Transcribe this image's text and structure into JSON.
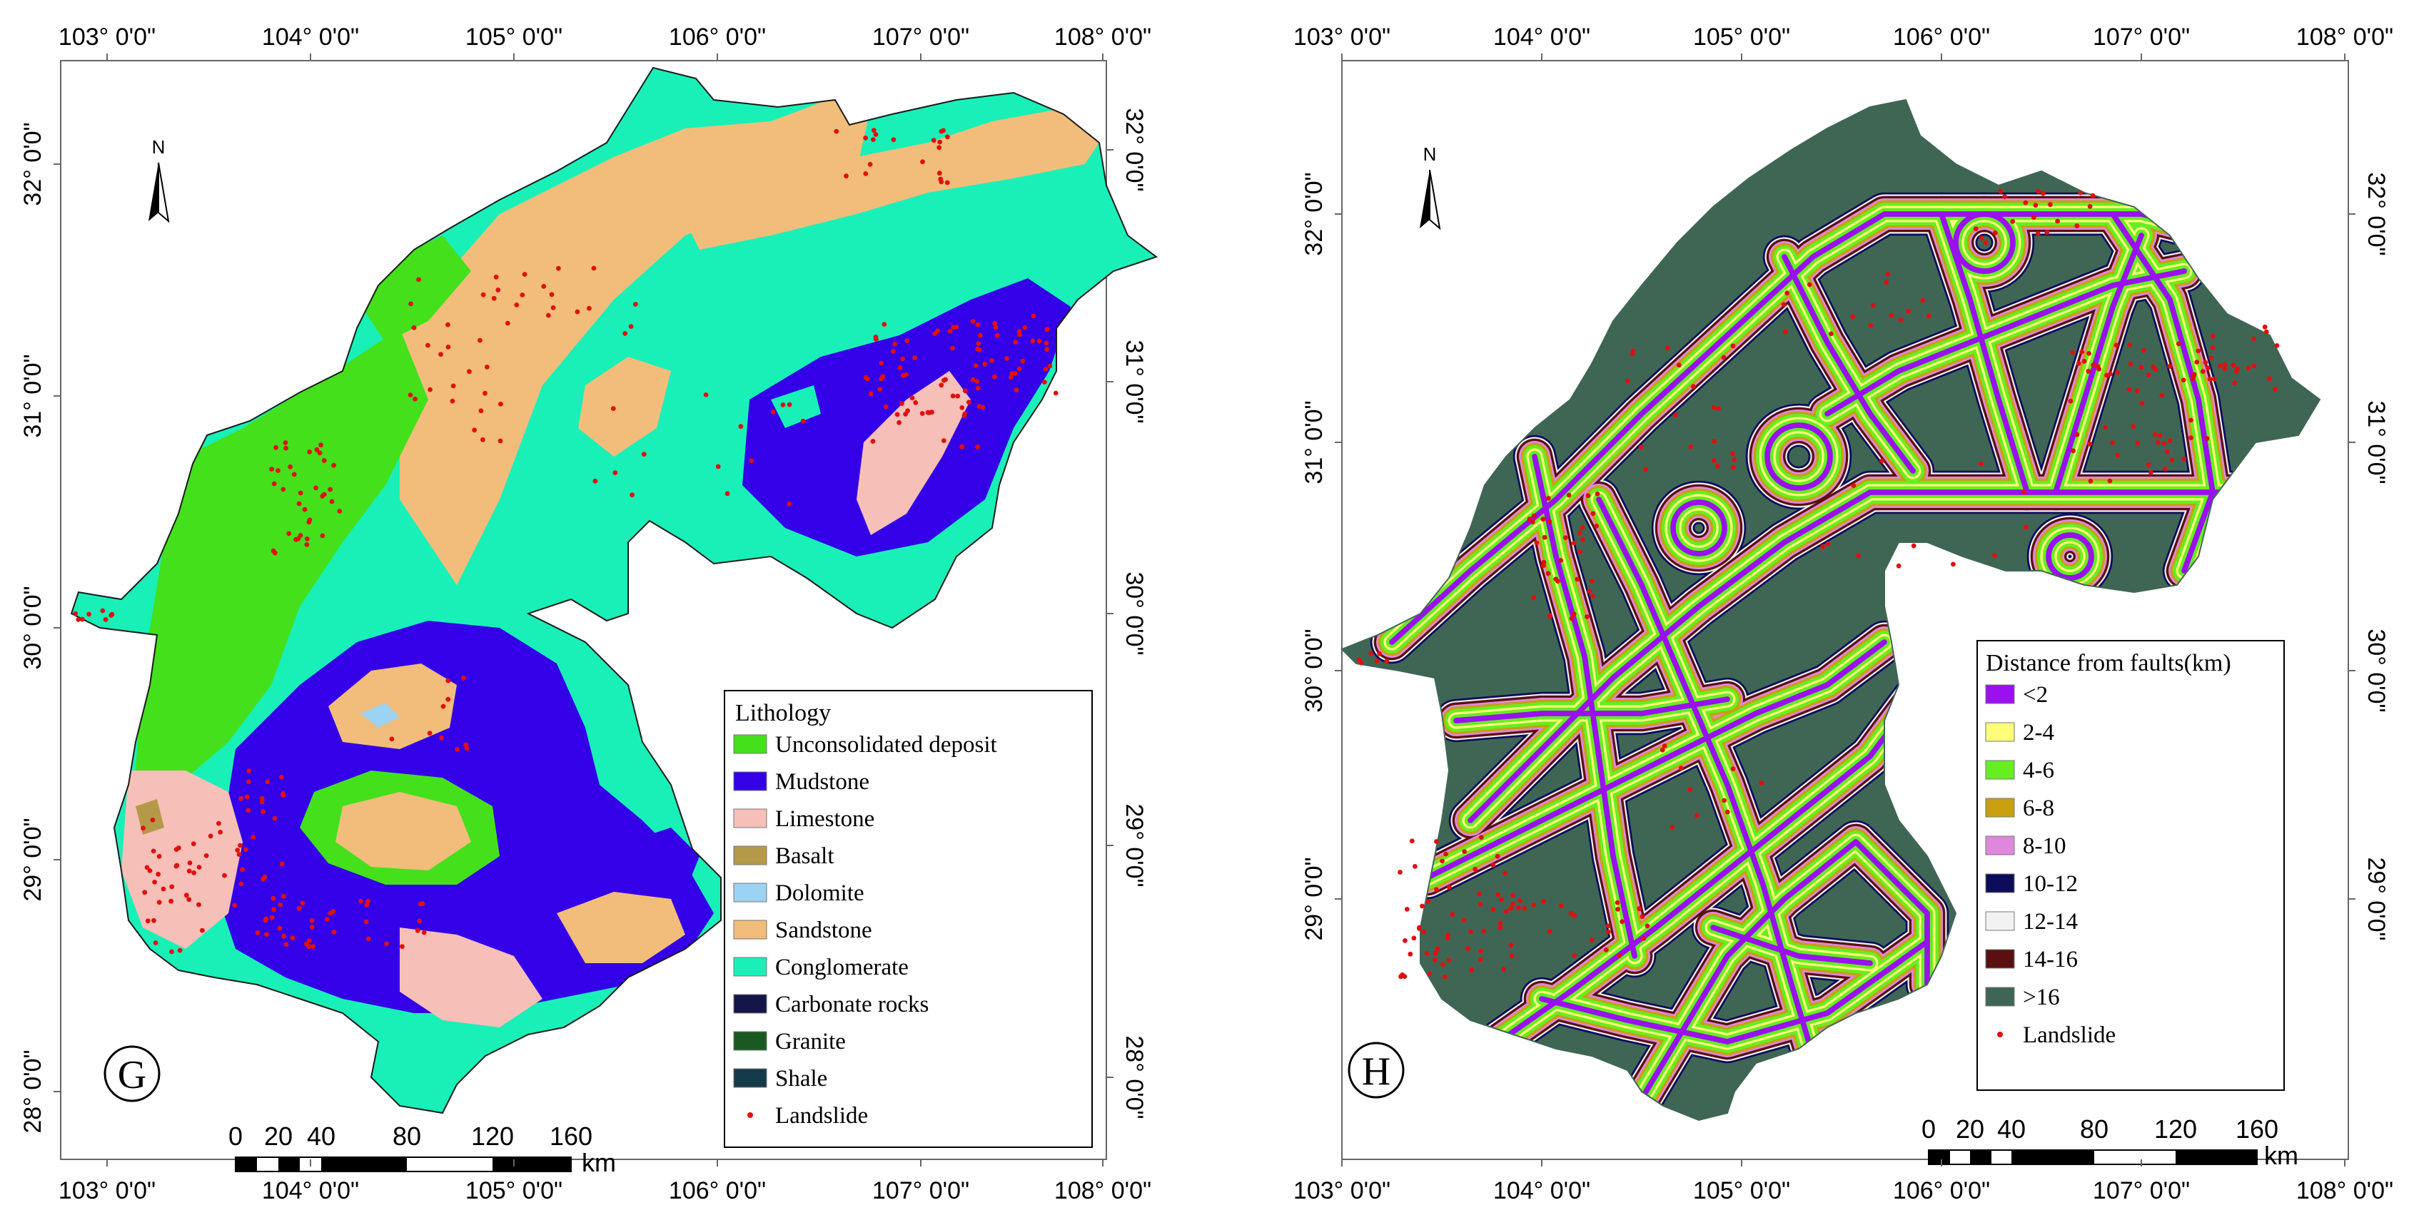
{
  "panels": [
    {
      "id": "G",
      "letter": "G",
      "north_label": "N",
      "top_ticks": [
        "103°  0'0\"",
        "104°  0'0\"",
        "105°  0'0\"",
        "106°  0'0\"",
        "107°  0'0\"",
        "108°  0'0\""
      ],
      "bottom_ticks": [
        "103°  0'0\"",
        "104°  0'0\"",
        "105°  0'0\"",
        "106°  0'0\"",
        "107°  0'0\"",
        "108°  0'0\""
      ],
      "left_ticks": [
        "32°  0'0\"",
        "31°  0'0\"",
        "30°  0'0\"",
        "29°  0'0\"",
        "28°  0'0\""
      ],
      "right_ticks": [
        "32°  0'0\"",
        "31°  0'0\"",
        "30°  0'0\"",
        "29°  0'0\"",
        "28°  0'0\""
      ],
      "legend": {
        "title": "Lithology",
        "items": [
          {
            "label": "Unconsolidated deposit",
            "color": "#44e01c"
          },
          {
            "label": "Mudstone",
            "color": "#3300e8"
          },
          {
            "label": "Limestone",
            "color": "#f6bfb8"
          },
          {
            "label": "Basalt",
            "color": "#b49a48"
          },
          {
            "label": "Dolomite",
            "color": "#9cd2f2"
          },
          {
            "label": "Sandstone",
            "color": "#f2bd7a"
          },
          {
            "label": "Conglomerate",
            "color": "#19f0b8"
          },
          {
            "label": "Carbonate rocks",
            "color": "#15154a"
          },
          {
            "label": "Granite",
            "color": "#1a5a22"
          },
          {
            "label": "Shale",
            "color": "#153a4a"
          },
          {
            "label": "Landslide",
            "color": "#e01010",
            "symbol": "dot"
          }
        ]
      },
      "scale": {
        "labels": [
          "0",
          "20",
          "40",
          "80",
          "120",
          "160"
        ],
        "unit": "km"
      }
    },
    {
      "id": "H",
      "letter": "H",
      "north_label": "N",
      "top_ticks": [
        "103°  0'0\"",
        "104°  0'0\"",
        "105°  0'0\"",
        "106°  0'0\"",
        "107°  0'0\"",
        "108°  0'0\""
      ],
      "bottom_ticks": [
        "103°  0'0\"",
        "104°  0'0\"",
        "105°  0'0\"",
        "106°  0'0\"",
        "107°  0'0\"",
        "108°  0'0\""
      ],
      "left_ticks": [
        "32°  0'0\"",
        "31°  0'0\"",
        "30°  0'0\"",
        "29°  0'0\""
      ],
      "right_ticks": [
        "32°  0'0\"",
        "31°  0'0\"",
        "30°  0'0\"",
        "29°  0'0\""
      ],
      "legend": {
        "title": "Distance from faults(km)",
        "items": [
          {
            "label": "<2",
            "color": "#9a10ee"
          },
          {
            "label": "2-4",
            "color": "#fffe7a"
          },
          {
            "label": "4-6",
            "color": "#66ee22"
          },
          {
            "label": "6-8",
            "color": "#c8a010"
          },
          {
            "label": "8-10",
            "color": "#dd88dd"
          },
          {
            "label": "10-12",
            "color": "#0c0c5a"
          },
          {
            "label": "12-14",
            "color": "#f2f2f2"
          },
          {
            "label": "14-16",
            "color": "#5a1010"
          },
          {
            "label": ">16",
            "color": "#3f6655"
          },
          {
            "label": "Landslide",
            "color": "#e01010",
            "symbol": "dot"
          }
        ]
      },
      "scale": {
        "labels": [
          "0",
          "20",
          "40",
          "80",
          "120",
          "160"
        ],
        "unit": "km"
      }
    }
  ]
}
